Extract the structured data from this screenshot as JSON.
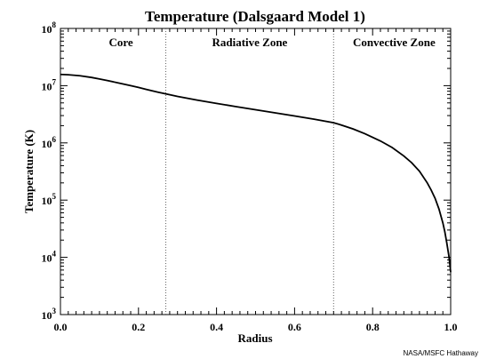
{
  "chart_data": {
    "type": "line",
    "title": "Temperature (Dalsgaard Model 1)",
    "xlabel": "Radius",
    "ylabel": "Temperature (K)",
    "xlim": [
      0.0,
      1.0
    ],
    "ylim": [
      1000,
      100000000
    ],
    "y_scale": "log",
    "x_ticks": [
      {
        "value": 0.0,
        "label": "0.0"
      },
      {
        "value": 0.2,
        "label": "0.2"
      },
      {
        "value": 0.4,
        "label": "0.4"
      },
      {
        "value": 0.6,
        "label": "0.6"
      },
      {
        "value": 0.8,
        "label": "0.8"
      },
      {
        "value": 1.0,
        "label": "1.0"
      }
    ],
    "y_ticks": [
      {
        "value": 1000,
        "base": "10",
        "exp": "3"
      },
      {
        "value": 10000,
        "base": "10",
        "exp": "4"
      },
      {
        "value": 100000,
        "base": "10",
        "exp": "5"
      },
      {
        "value": 1000000,
        "base": "10",
        "exp": "6"
      },
      {
        "value": 10000000,
        "base": "10",
        "exp": "7"
      },
      {
        "value": 100000000,
        "base": "10",
        "exp": "8"
      }
    ],
    "zones": [
      {
        "label": "Core",
        "x_center": 0.155
      },
      {
        "label": "Radiative Zone",
        "x_center": 0.485
      },
      {
        "label": "Convective Zone",
        "x_center": 0.855
      }
    ],
    "boundaries": [
      0.27,
      0.7
    ],
    "series": [
      {
        "x": [
          0.0,
          0.02,
          0.05,
          0.08,
          0.1,
          0.12,
          0.15,
          0.18,
          0.2,
          0.22,
          0.25,
          0.27,
          0.3,
          0.35,
          0.4,
          0.45,
          0.5,
          0.55,
          0.6,
          0.65,
          0.7,
          0.72,
          0.75,
          0.78,
          0.8,
          0.82,
          0.85,
          0.88,
          0.9,
          0.92,
          0.94,
          0.95,
          0.96,
          0.97,
          0.98,
          0.985,
          0.99,
          0.995,
          0.998,
          1.0
        ],
        "y": [
          15700000,
          15500000,
          14900000,
          13900000,
          13100000,
          12300000,
          11100000,
          10000000,
          9300000,
          8600000,
          7700000,
          7200000,
          6500000,
          5600000,
          4900000,
          4300000,
          3800000,
          3350000,
          2950000,
          2600000,
          2250000,
          2050000,
          1750000,
          1450000,
          1250000,
          1080000,
          830000,
          590000,
          450000,
          320000,
          200000,
          150000,
          108000,
          70000,
          40000,
          28000,
          18000,
          11000,
          7500,
          5500
        ]
      }
    ],
    "credit": "NASA/MSFC Hathaway"
  }
}
